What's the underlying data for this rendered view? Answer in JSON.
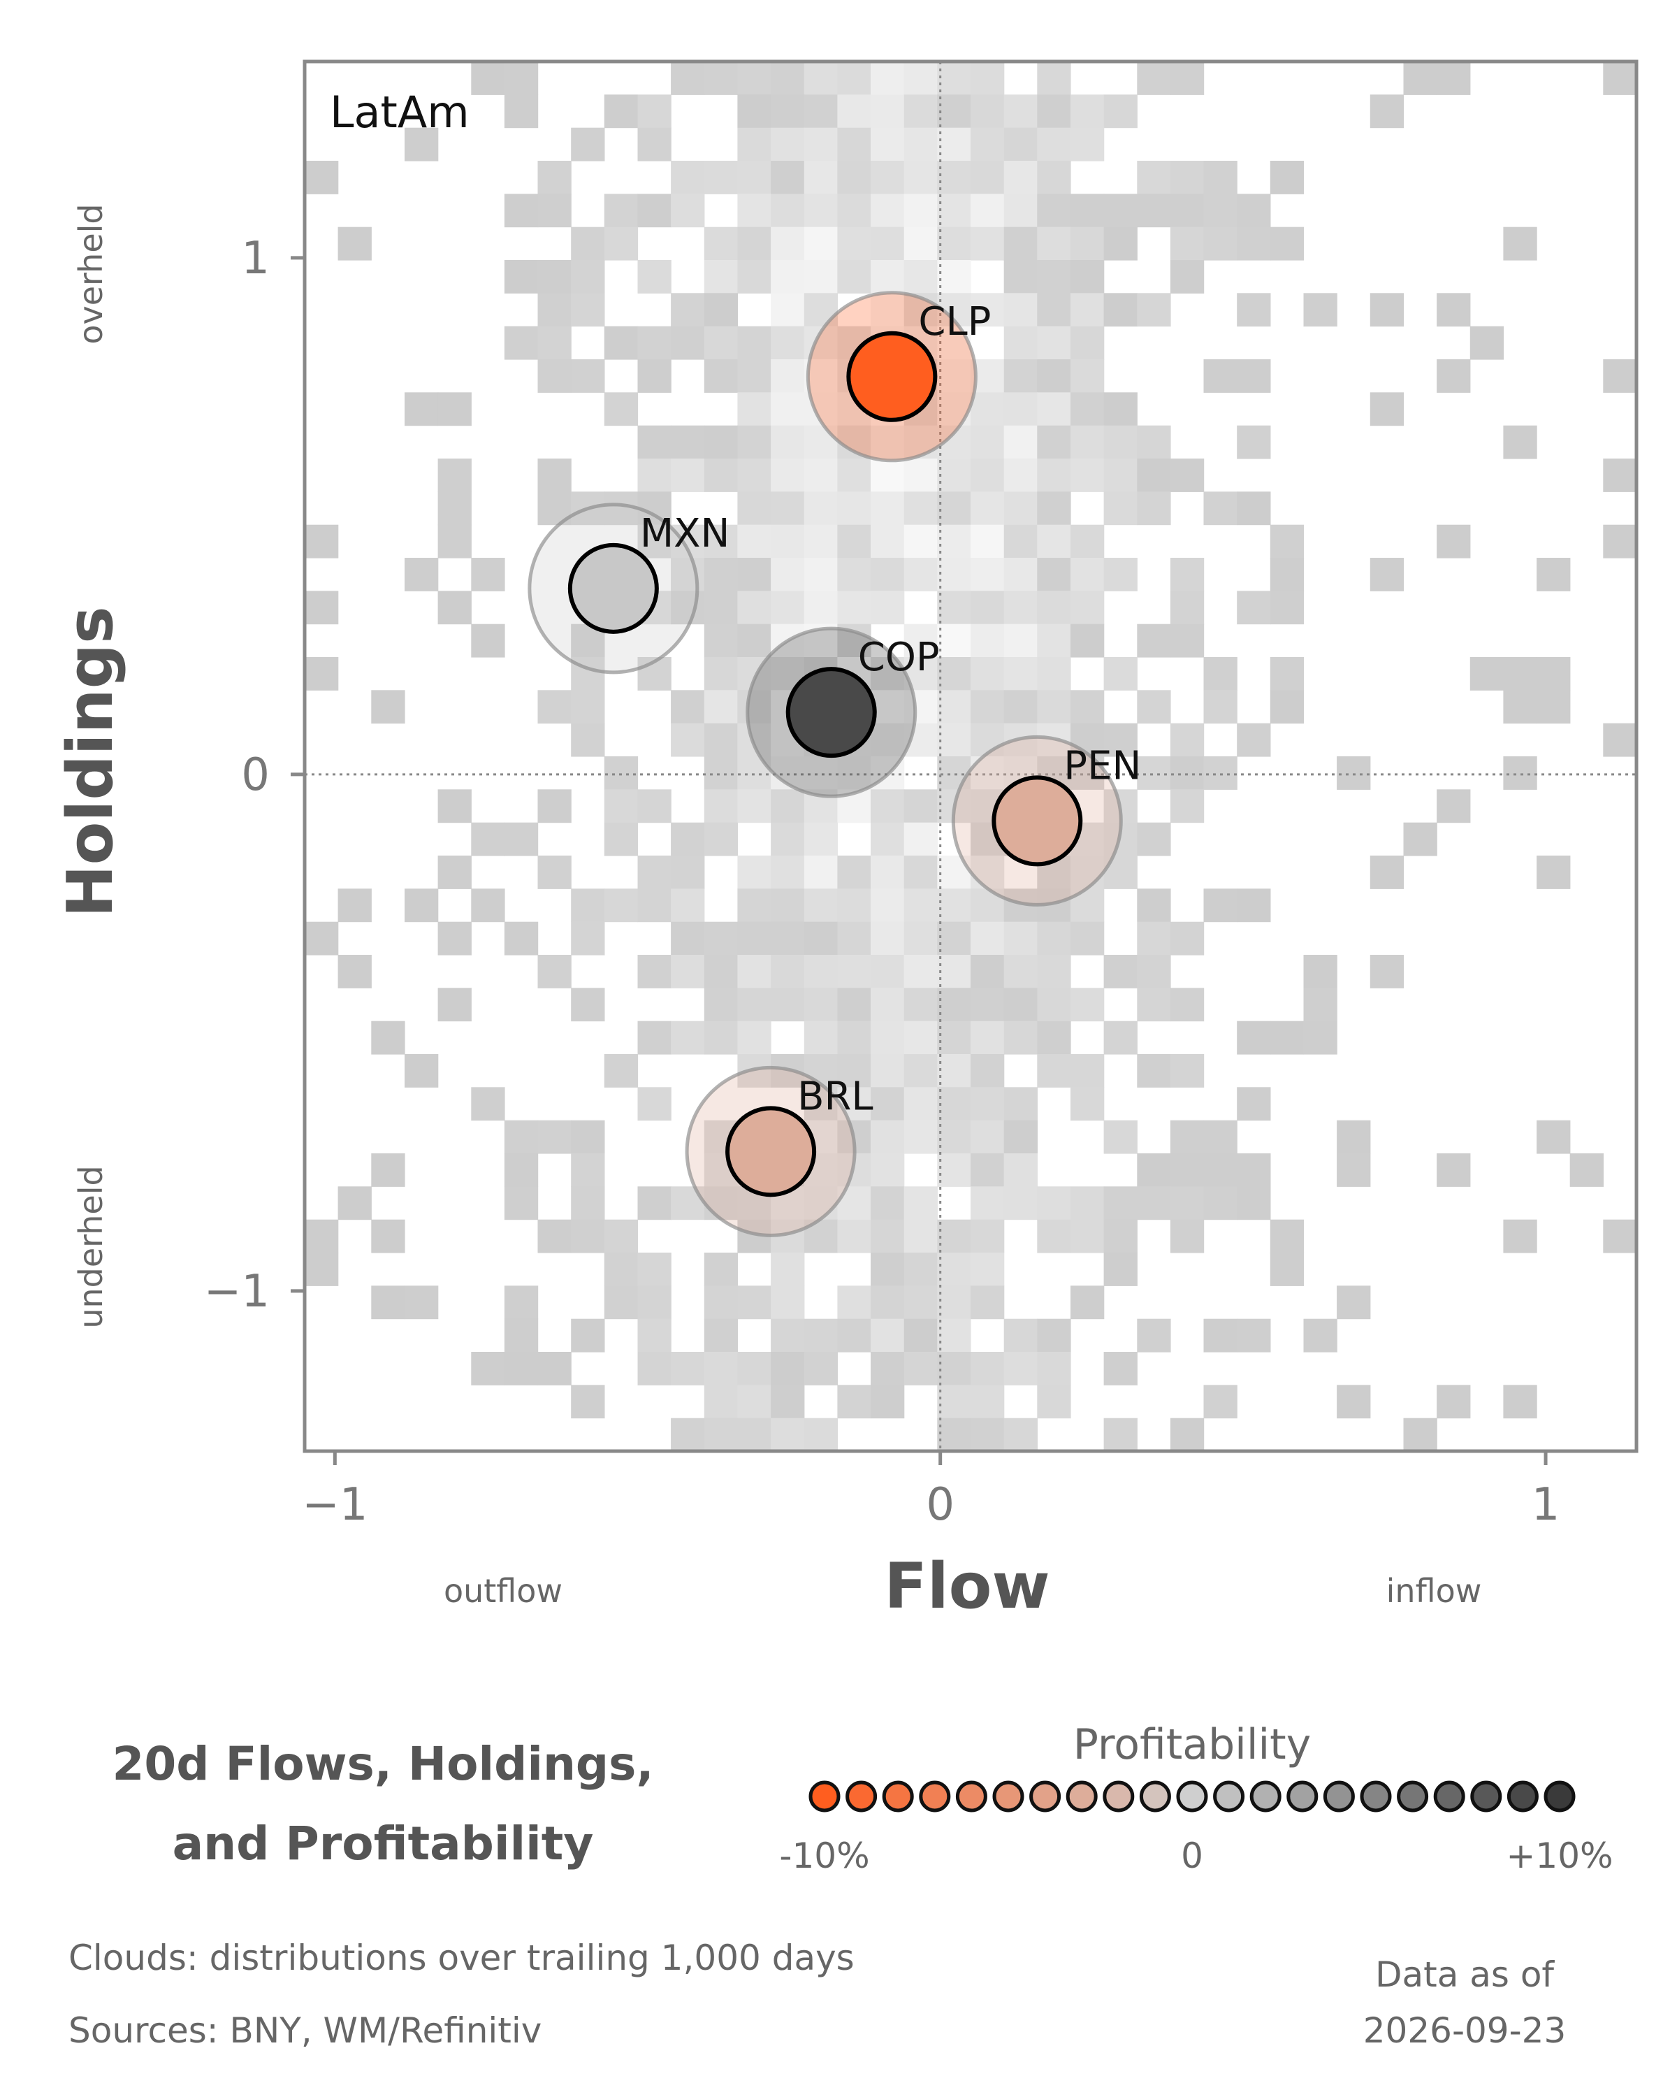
{
  "chart_data": {
    "type": "scatter",
    "panel_label": "LatAm",
    "xlabel": "Flow",
    "ylabel": "Holdings",
    "xlim": [
      -1.05,
      1.15
    ],
    "ylim": [
      -1.31,
      1.38
    ],
    "x_ticks": [
      {
        "value": -1,
        "label": "−1"
      },
      {
        "value": 0,
        "label": "0"
      },
      {
        "value": 1,
        "label": "1"
      }
    ],
    "y_ticks": [
      {
        "value": 1,
        "label": "1"
      },
      {
        "value": 0,
        "label": "0"
      },
      {
        "value": -1,
        "label": "−1"
      }
    ],
    "x_side_labels": {
      "left": "outflow",
      "right": "inflow"
    },
    "y_side_labels": {
      "top": "overheld",
      "bottom": "underheld"
    },
    "reference_lines": {
      "x": 0,
      "y": 0
    },
    "grid": false,
    "points": [
      {
        "label": "CLP",
        "flow": -0.08,
        "holdings": 0.77,
        "profitability": -10
      },
      {
        "label": "MXN",
        "flow": -0.54,
        "holdings": 0.36,
        "profitability": 0.5
      },
      {
        "label": "COP",
        "flow": -0.18,
        "holdings": 0.12,
        "profitability": 9
      },
      {
        "label": "PEN",
        "flow": 0.16,
        "holdings": -0.09,
        "profitability": -3
      },
      {
        "label": "BRL",
        "flow": -0.28,
        "holdings": -0.73,
        "profitability": -3
      }
    ],
    "legend": {
      "title": "Profitability",
      "min_label": "-10%",
      "mid_label": "0",
      "max_label": "+10%",
      "range": [
        -10,
        10
      ],
      "low_color": "#ff5e1f",
      "mid_color": "#cfcfcf",
      "high_color": "#3a3a3a",
      "swatch_count": 21
    },
    "background_cloud": "distributions over trailing 1,000 days"
  },
  "title_lines": [
    "20d Flows, Holdings,",
    "and Profitability"
  ],
  "footer": {
    "clouds": "Clouds:  distributions over trailing 1,000 days",
    "sources": "Sources:  BNY, WM/Refinitiv",
    "data_as_of_label": "Data as of",
    "data_as_of_date": "2026-09-23"
  }
}
